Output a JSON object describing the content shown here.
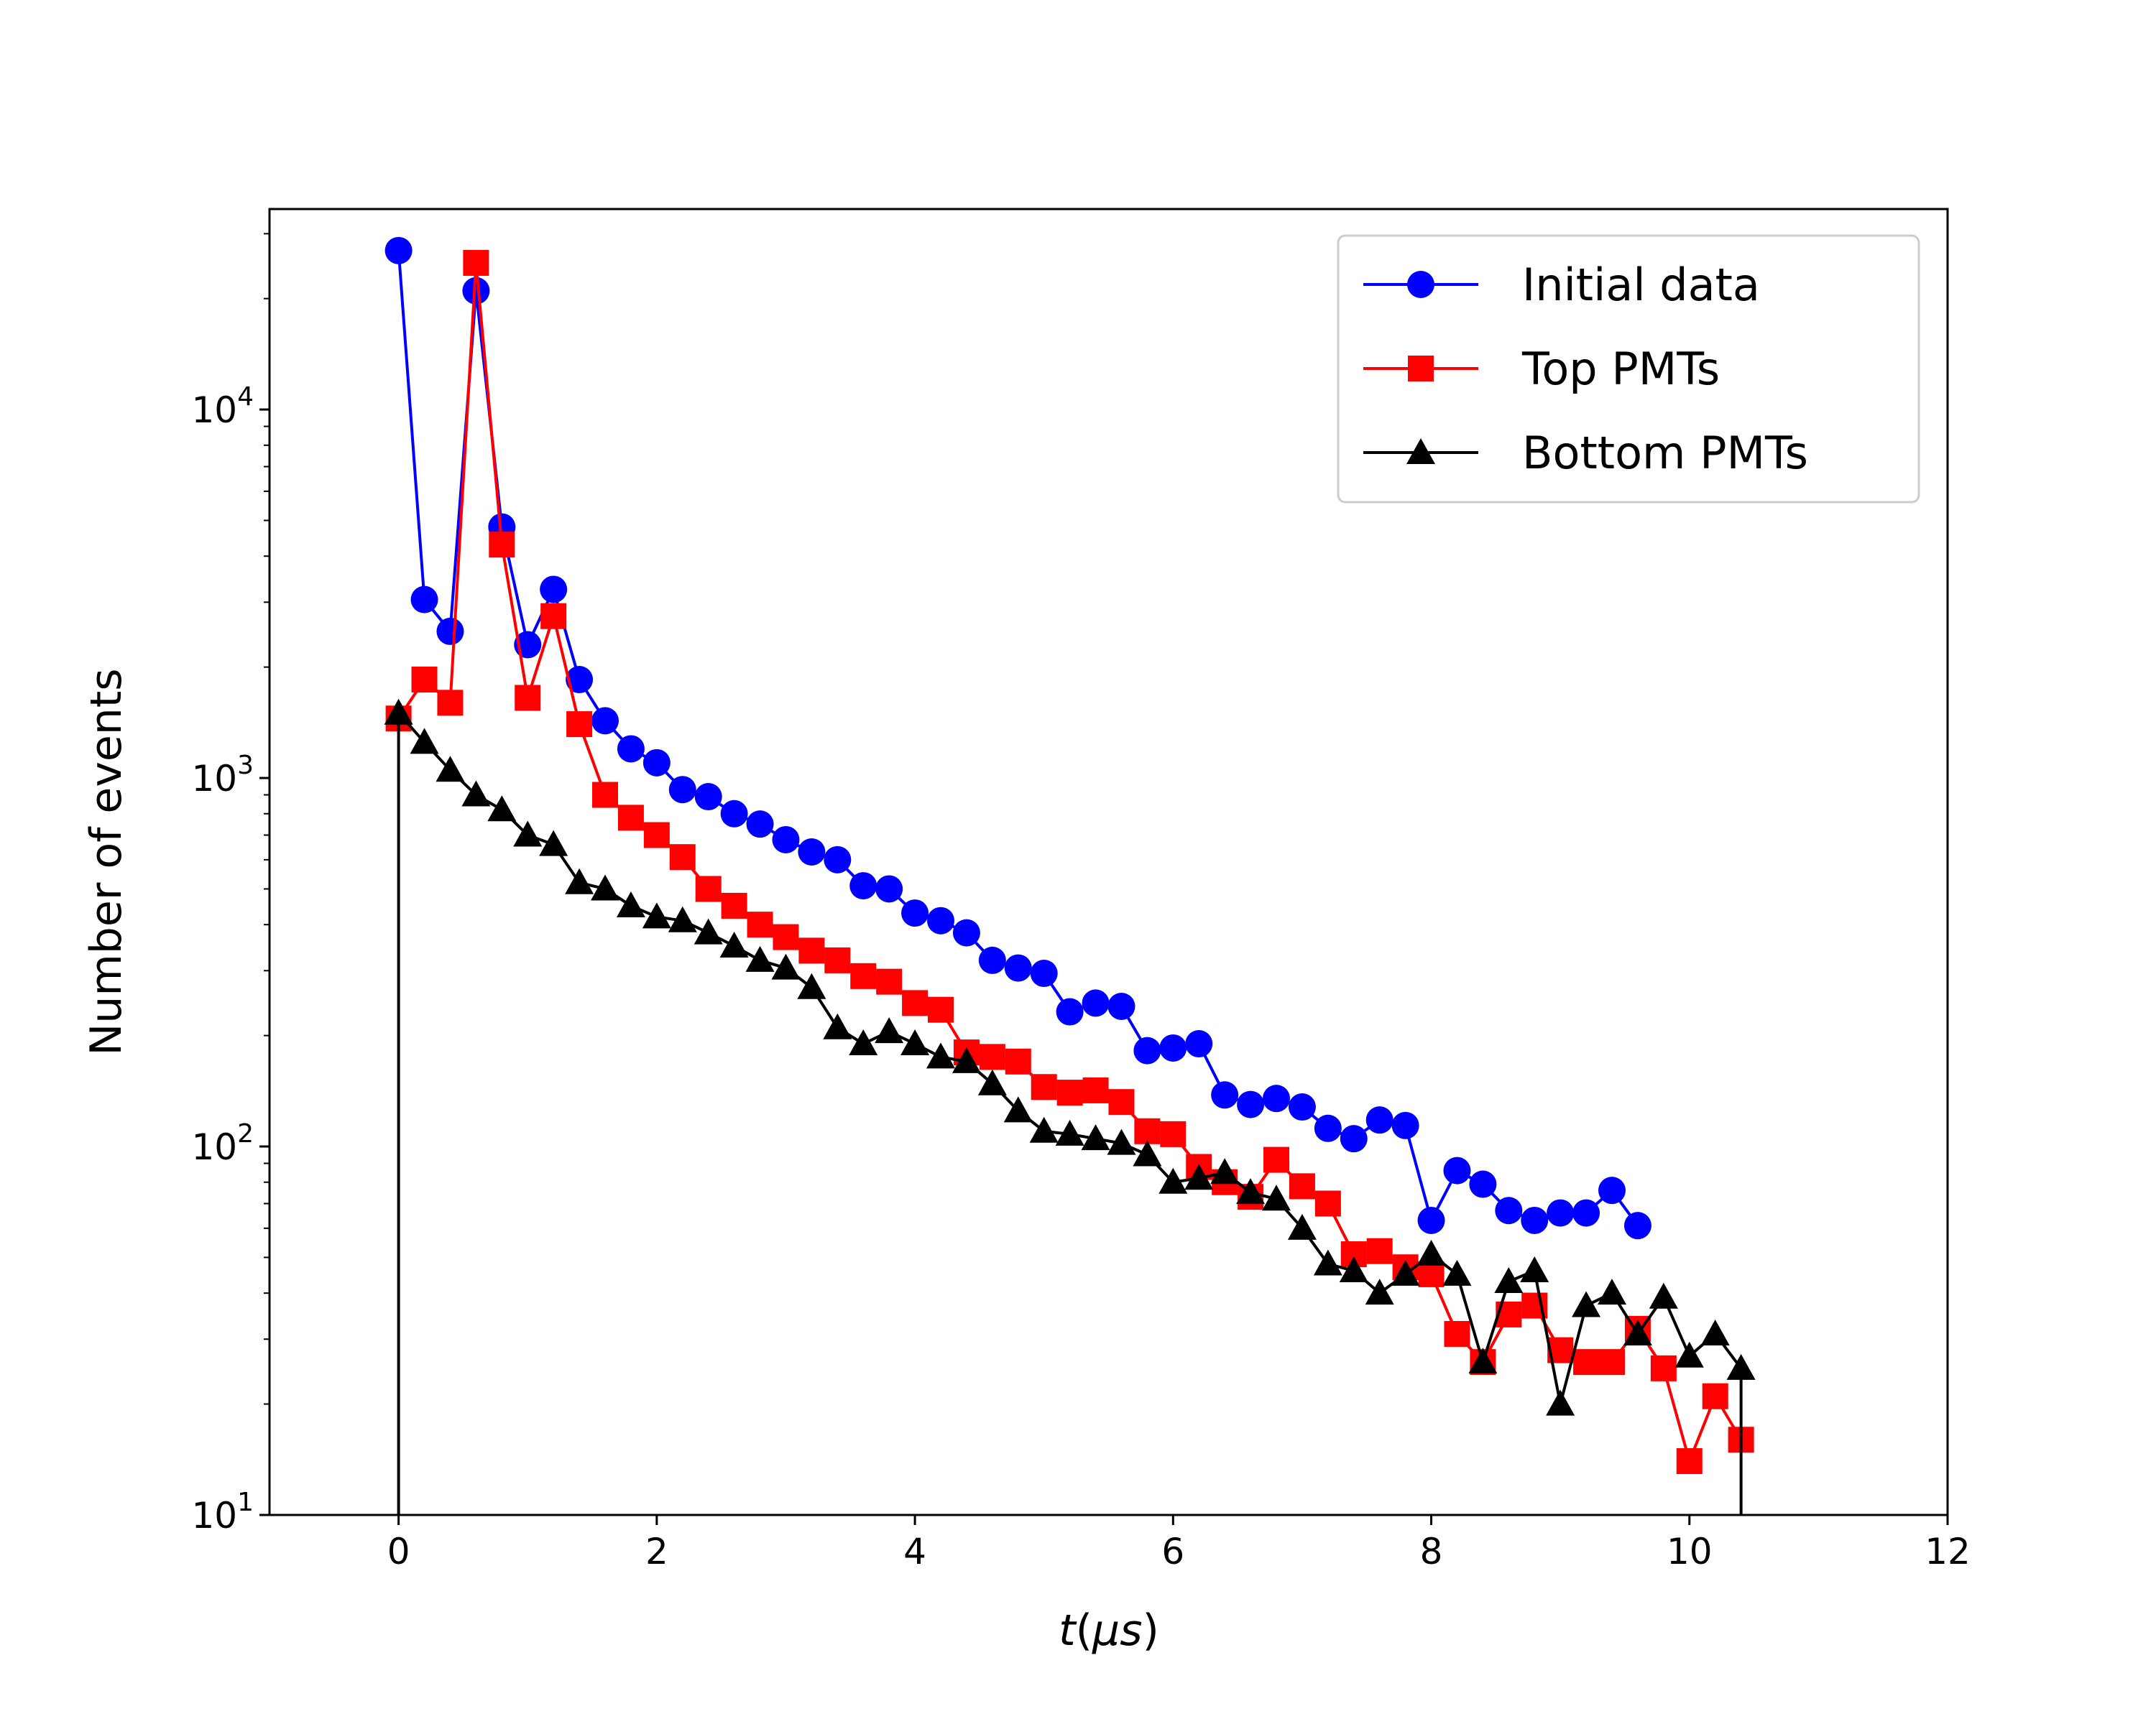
{
  "chart_data": {
    "type": "line",
    "title": "",
    "xlabel": "t(μs)",
    "xlabel_parts": {
      "var": "t",
      "open": "(",
      "unit": "μs",
      "close": ")"
    },
    "ylabel": "Number of events",
    "xlim": [
      -1,
      12
    ],
    "ylim": [
      10,
      35000
    ],
    "yscale": "log",
    "x_ticks": [
      0,
      2,
      4,
      6,
      8,
      10,
      12
    ],
    "x_tick_labels": [
      "0",
      "2",
      "4",
      "6",
      "8",
      "10",
      "12"
    ],
    "y_ticks": [
      10,
      100,
      1000,
      10000
    ],
    "y_tick_labels": [
      {
        "base": "10",
        "exp": "1"
      },
      {
        "base": "10",
        "exp": "2"
      },
      {
        "base": "10",
        "exp": "3"
      },
      {
        "base": "10",
        "exp": "4"
      }
    ],
    "grid": false,
    "legend_position": "top-right",
    "series": [
      {
        "name": "Initial data",
        "color": "#0000ff",
        "marker": "circle",
        "x": [
          0,
          0.2,
          0.4,
          0.6,
          0.8,
          1.0,
          1.2,
          1.4,
          1.6,
          1.8,
          2.0,
          2.2,
          2.4,
          2.6,
          2.8,
          3.0,
          3.2,
          3.4,
          3.6,
          3.8,
          4.0,
          4.2,
          4.4,
          4.6,
          4.8,
          5.0,
          5.2,
          5.4,
          5.6,
          5.8,
          6.0,
          6.2,
          6.4,
          6.6,
          6.8,
          7.0,
          7.2,
          7.4,
          7.6,
          7.8,
          8.0,
          8.2,
          8.4,
          8.6,
          8.8,
          9.0,
          9.2,
          9.4,
          9.6
        ],
        "y": [
          27000,
          3050,
          2500,
          21000,
          4800,
          2300,
          3250,
          1850,
          1430,
          1200,
          1100,
          930,
          890,
          800,
          750,
          680,
          630,
          600,
          510,
          500,
          430,
          410,
          380,
          320,
          305,
          295,
          232,
          245,
          240,
          182,
          185,
          190,
          138,
          130,
          135,
          128,
          112,
          105,
          118,
          114,
          63,
          86,
          79,
          67,
          63,
          66,
          66,
          76,
          61
        ],
        "drop_to_bottom": false
      },
      {
        "name": "Top PMTs",
        "color": "#ff0000",
        "marker": "square",
        "x": [
          0,
          0.2,
          0.4,
          0.6,
          0.8,
          1.0,
          1.2,
          1.4,
          1.6,
          1.8,
          2.0,
          2.2,
          2.4,
          2.6,
          2.8,
          3.0,
          3.2,
          3.4,
          3.6,
          3.8,
          4.0,
          4.2,
          4.4,
          4.6,
          4.8,
          5.0,
          5.2,
          5.4,
          5.6,
          5.8,
          6.0,
          6.2,
          6.4,
          6.6,
          6.8,
          7.0,
          7.2,
          7.4,
          7.6,
          7.8,
          8.0,
          8.2,
          8.4,
          8.6,
          8.8,
          9.0,
          9.2,
          9.4,
          9.6,
          9.8,
          10.0,
          10.2,
          10.4
        ],
        "y": [
          1450,
          1850,
          1600,
          25000,
          4300,
          1650,
          2750,
          1400,
          900,
          780,
          700,
          610,
          500,
          450,
          400,
          370,
          340,
          320,
          290,
          280,
          245,
          235,
          180,
          175,
          170,
          145,
          140,
          142,
          132,
          110,
          108,
          88,
          80,
          73,
          92,
          78,
          70,
          51,
          52,
          47,
          45,
          31,
          26,
          35,
          37,
          28,
          26,
          26,
          32,
          25,
          14,
          21,
          16
        ],
        "drop_to_bottom": false
      },
      {
        "name": "Bottom PMTs",
        "color": "#000000",
        "marker": "triangle",
        "x": [
          0,
          0.2,
          0.4,
          0.6,
          0.8,
          1.0,
          1.2,
          1.4,
          1.6,
          1.8,
          2.0,
          2.2,
          2.4,
          2.6,
          2.8,
          3.0,
          3.2,
          3.4,
          3.6,
          3.8,
          4.0,
          4.2,
          4.4,
          4.6,
          4.8,
          5.0,
          5.2,
          5.4,
          5.6,
          5.8,
          6.0,
          6.2,
          6.4,
          6.6,
          6.8,
          7.0,
          7.2,
          7.4,
          7.6,
          7.8,
          8.0,
          8.2,
          8.4,
          8.6,
          8.8,
          9.0,
          9.2,
          9.4,
          9.6,
          9.8,
          10.0,
          10.2,
          10.4
        ],
        "y": [
          1500,
          1250,
          1050,
          900,
          820,
          700,
          660,
          520,
          500,
          450,
          420,
          410,
          380,
          350,
          320,
          305,
          270,
          210,
          190,
          205,
          190,
          175,
          170,
          148,
          125,
          110,
          108,
          105,
          102,
          95,
          80,
          82,
          85,
          75,
          72,
          60,
          48,
          46,
          40,
          45,
          51,
          45,
          26,
          43,
          46,
          20,
          37,
          40,
          31,
          39,
          27,
          31,
          25
        ],
        "drop_to_bottom": true
      }
    ]
  }
}
